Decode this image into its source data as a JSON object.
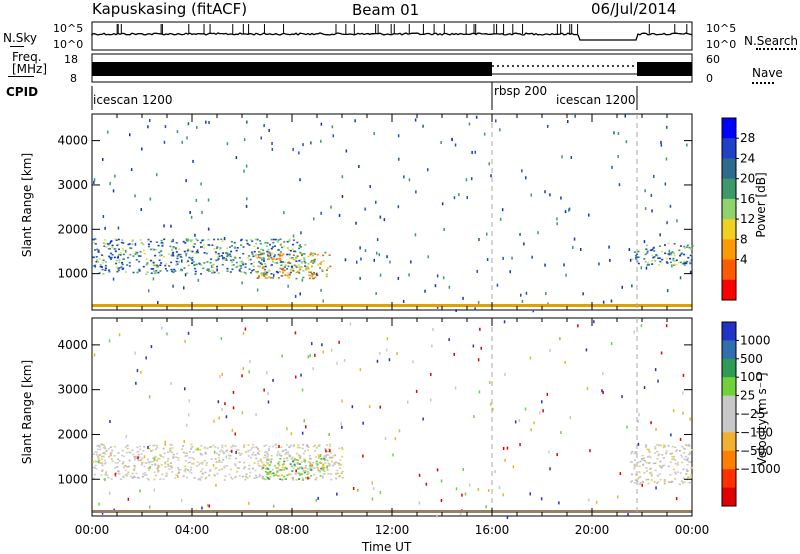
{
  "header": {
    "station": "Kapuskasing (fitACF)",
    "beam": "Beam 01",
    "date": "06/Jul/2014"
  },
  "strips": {
    "nsky_label": "N.Sky",
    "nsearch_label": "N.Search",
    "nsky_ticks": [
      "10^5",
      "10^0"
    ],
    "nsearch_ticks": [
      "10^5",
      "10^0"
    ],
    "freq_label_line1": "Freq.",
    "freq_label_line2": "[MHz]",
    "freq_ticks": [
      "18",
      "8"
    ],
    "nave_label": "Nave",
    "nave_ticks": [
      "60",
      "0"
    ],
    "cpid_label": "CPID",
    "cpid_segments": [
      {
        "label": "icescan 1200",
        "start_hour": 0,
        "end_hour": 16
      },
      {
        "label": "rbsp 200",
        "start_hour": 16,
        "end_hour": 16
      },
      {
        "label": "icescan 1200",
        "start_hour": 16,
        "end_hour": 22
      }
    ]
  },
  "chart_data": [
    {
      "type": "heatmap",
      "name": "power-panel",
      "ylabel": "Slant Range [km]",
      "ylim": [
        180,
        4600
      ],
      "xlim": [
        0,
        24
      ],
      "yticks": [
        "4000",
        "3000",
        "2000",
        "1000"
      ],
      "ytick_values": [
        4000,
        3000,
        2000,
        1000
      ],
      "colorbar_label": "Power [dB]",
      "colorbar_ticks": [
        "28",
        "24",
        "20",
        "16",
        "12",
        "8",
        "4"
      ],
      "colorbar_colors": [
        "#0000ff",
        "#2040c8",
        "#2c6b8e",
        "#3c9a6a",
        "#8fd36e",
        "#f0d020",
        "#ff9a00",
        "#ff5a00",
        "#ff0000"
      ],
      "bands": [
        {
          "start": 0.0,
          "end": 8.5,
          "range_lo": 1000,
          "range_hi": 1800,
          "level": "moderate"
        },
        {
          "start": 6.5,
          "end": 9.5,
          "range_lo": 900,
          "range_hi": 1500,
          "level": "high"
        },
        {
          "start": 21.5,
          "end": 24.0,
          "range_lo": 1200,
          "range_hi": 1700,
          "level": "moderate"
        }
      ]
    },
    {
      "type": "heatmap",
      "name": "velocity-panel",
      "ylabel": "Slant Range [km]",
      "xlabel": "Time UT",
      "ylim": [
        180,
        4600
      ],
      "xlim": [
        0,
        24
      ],
      "xticks": [
        "00:00",
        "04:00",
        "08:00",
        "12:00",
        "16:00",
        "20:00",
        "00:00"
      ],
      "xtick_values": [
        0,
        4,
        8,
        12,
        16,
        20,
        24
      ],
      "yticks": [
        "4000",
        "3000",
        "2000",
        "1000"
      ],
      "ytick_values": [
        4000,
        3000,
        2000,
        1000
      ],
      "colorbar_label": "Velocity [m s⁻¹]",
      "colorbar_ticks": [
        "1000",
        "500",
        "100",
        "25",
        "−25",
        "−100",
        "−500",
        "−1000"
      ],
      "colorbar_colors": [
        "#1f33c8",
        "#2f6fb0",
        "#2e9a55",
        "#6fd23a",
        "#c8c8c8",
        "#c8c8c8",
        "#f0b030",
        "#ff8000",
        "#ff3000",
        "#e00000"
      ],
      "bands": [
        {
          "start": 0.0,
          "end": 10.0,
          "range_lo": 1000,
          "range_hi": 1800,
          "level": "grey"
        },
        {
          "start": 6.8,
          "end": 9.3,
          "range_lo": 1000,
          "range_hi": 1500,
          "level": "green"
        },
        {
          "start": 21.5,
          "end": 24.0,
          "range_lo": 900,
          "range_hi": 1800,
          "level": "grey"
        }
      ]
    }
  ]
}
